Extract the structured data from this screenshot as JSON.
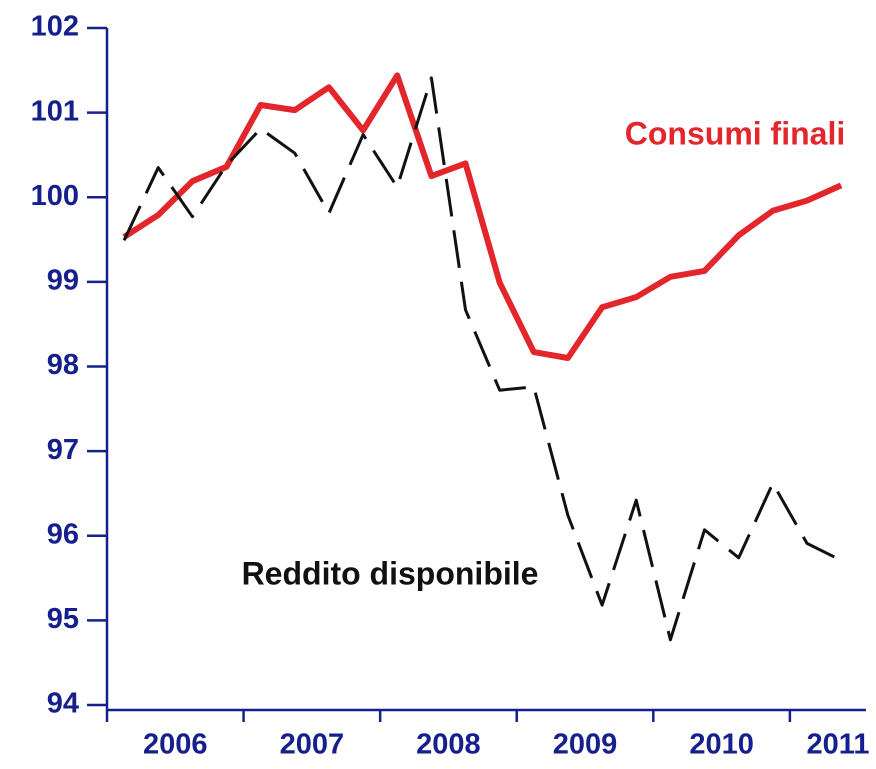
{
  "chart_data": {
    "type": "line",
    "x": [
      2006.125,
      2006.375,
      2006.625,
      2006.875,
      2007.125,
      2007.375,
      2007.625,
      2007.875,
      2008.125,
      2008.375,
      2008.625,
      2008.875,
      2009.125,
      2009.375,
      2009.625,
      2009.875,
      2010.125,
      2010.375,
      2010.625,
      2010.875,
      2011.125,
      2011.375
    ],
    "series": [
      {
        "name": "Consumi finali",
        "color": "#e3262b",
        "dash": false,
        "values": [
          99.53,
          99.79,
          100.19,
          100.36,
          101.09,
          101.03,
          101.3,
          100.79,
          101.44,
          100.25,
          100.4,
          98.99,
          98.17,
          98.1,
          98.7,
          98.82,
          99.06,
          99.13,
          99.55,
          99.84,
          99.96,
          100.14
        ]
      },
      {
        "name": "Reddito disponibile",
        "color": "#111111",
        "dash": true,
        "values": [
          99.49,
          100.35,
          99.77,
          100.38,
          100.81,
          100.52,
          99.81,
          100.74,
          100.12,
          101.41,
          98.67,
          97.72,
          97.76,
          96.24,
          95.18,
          96.42,
          94.77,
          96.07,
          95.74,
          96.62,
          95.91,
          95.71
        ]
      }
    ],
    "xlim": [
      2006,
      2011.55
    ],
    "xticks": [
      {
        "value": 2006,
        "label": "2006"
      },
      {
        "value": 2007,
        "label": "2007"
      },
      {
        "value": 2008,
        "label": "2008"
      },
      {
        "value": 2009,
        "label": "2009"
      },
      {
        "value": 2010,
        "label": "2010"
      },
      {
        "value": 2011,
        "label": "2011"
      }
    ],
    "ylim": [
      94,
      102
    ],
    "yticks": [
      94,
      95,
      96,
      97,
      98,
      99,
      100,
      101,
      102
    ],
    "grid": false
  }
}
